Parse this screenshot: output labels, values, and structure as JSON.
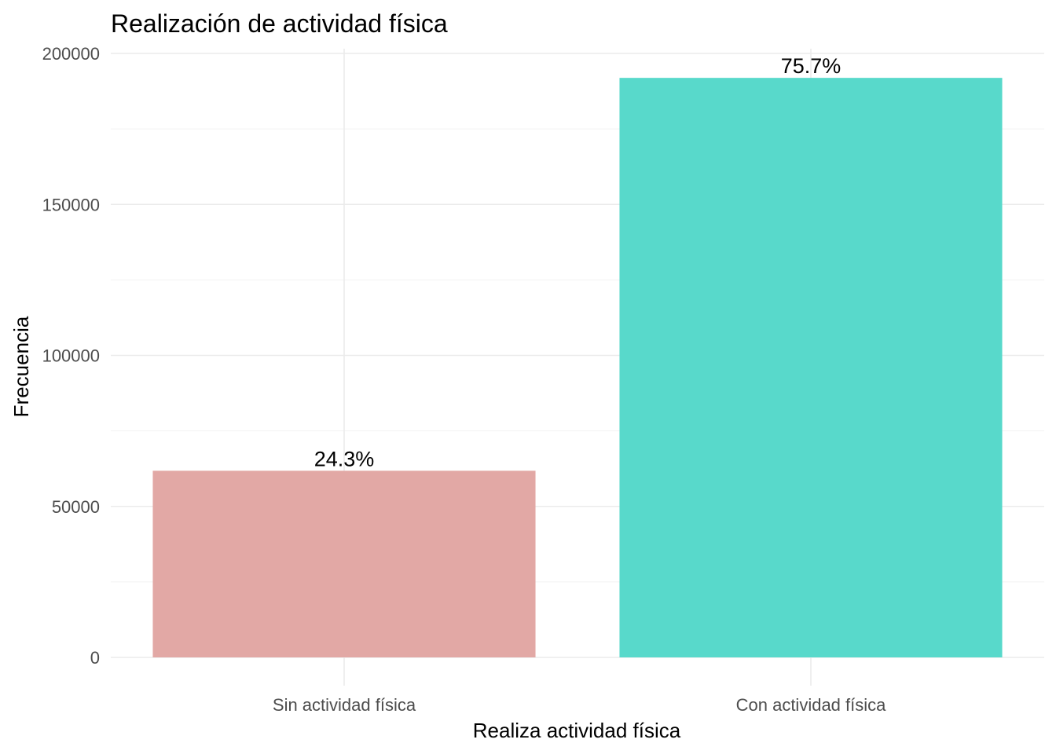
{
  "chart_data": {
    "type": "bar",
    "title": "Realización de actividad física",
    "xlabel": "Realiza actividad física",
    "ylabel": "Frecuencia",
    "categories": [
      "Sin actividad física",
      "Con actividad física"
    ],
    "values": [
      61800,
      191900
    ],
    "labels": [
      "24.3%",
      "75.7%"
    ],
    "colors": [
      "#e2a8a5",
      "#58d9cb"
    ],
    "ylim": [
      0,
      200000
    ],
    "yticks": [
      0,
      50000,
      100000,
      150000,
      200000
    ],
    "yticks_minor": [
      25000,
      75000,
      125000,
      175000
    ],
    "grid": true,
    "legend": "none"
  }
}
